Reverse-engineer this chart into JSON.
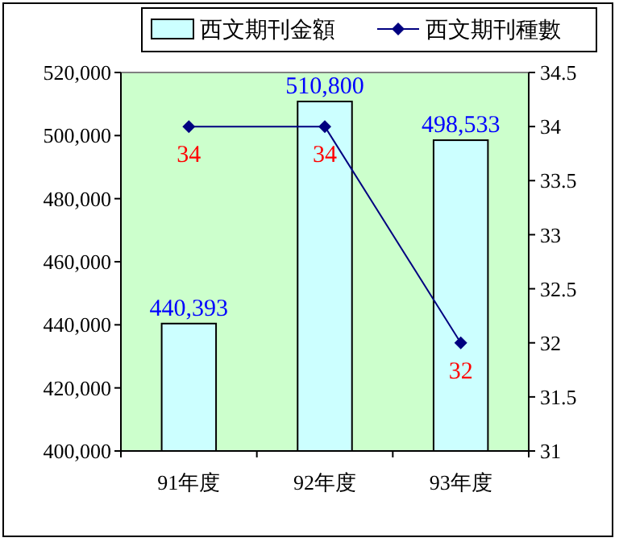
{
  "chart_data": {
    "type": "bar",
    "categories": [
      "91年度",
      "92年度",
      "93年度"
    ],
    "series": [
      {
        "name": "西文期刊金額",
        "type": "bar",
        "color": "#ccffff",
        "values": [
          440393,
          510800,
          498533
        ],
        "value_labels": [
          "440,393",
          "510,800",
          "498,533"
        ]
      },
      {
        "name": "西文期刊種數",
        "type": "line",
        "axis": "y2",
        "color": "#000080",
        "values": [
          34,
          34,
          32
        ],
        "value_labels": [
          "34",
          "34",
          "32"
        ]
      }
    ],
    "ylim": [
      400000,
      520000
    ],
    "yticks": [
      {
        "value": 400000,
        "label": "400,000"
      },
      {
        "value": 420000,
        "label": "420,000"
      },
      {
        "value": 440000,
        "label": "440,000"
      },
      {
        "value": 460000,
        "label": "460,000"
      },
      {
        "value": 480000,
        "label": "480,000"
      },
      {
        "value": 500000,
        "label": "500,000"
      },
      {
        "value": 520000,
        "label": "520,000"
      }
    ],
    "y2lim": [
      31,
      34.5
    ],
    "y2ticks": [
      31,
      31.5,
      32,
      32.5,
      33,
      33.5,
      34,
      34.5
    ],
    "legend": "top",
    "marker": "diamond",
    "line_style": "solid"
  }
}
